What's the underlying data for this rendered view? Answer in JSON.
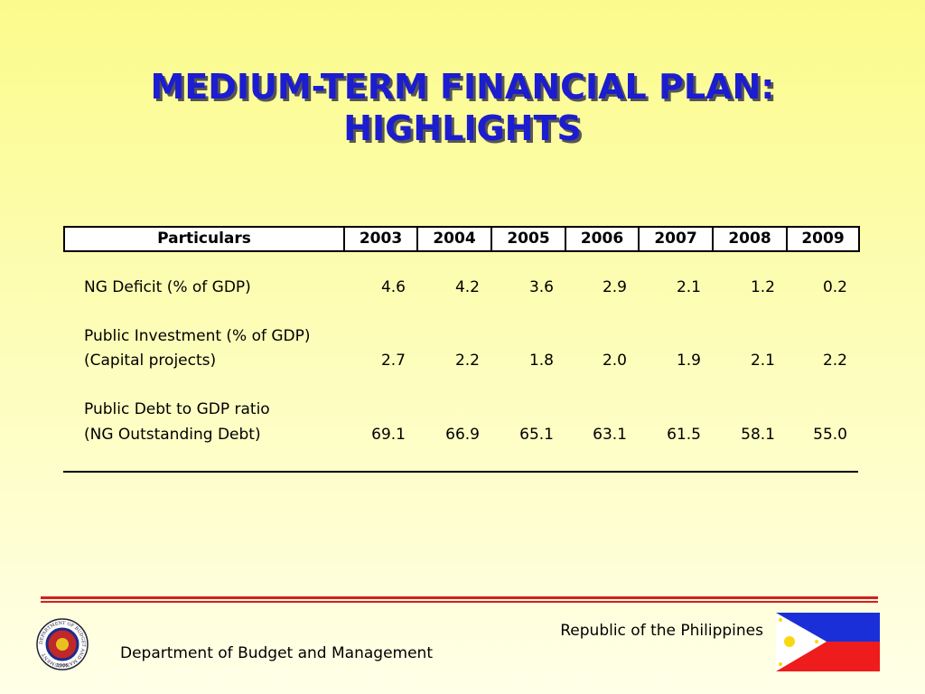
{
  "title": [
    "MEDIUM-TERM FINANCIAL PLAN:",
    "HIGHLIGHTS"
  ],
  "table": {
    "header": [
      "Particulars",
      "2003",
      "2004",
      "2005",
      "2006",
      "2007",
      "2008",
      "2009"
    ],
    "rows": [
      {
        "label": [
          "NG Deficit (% of GDP)"
        ],
        "values": [
          "4.6",
          "4.2",
          "3.6",
          "2.9",
          "2.1",
          "1.2",
          "0.2"
        ]
      },
      {
        "label": [
          "Public Investment (% of GDP)",
          "(Capital projects)"
        ],
        "values": [
          "2.7",
          "2.2",
          "1.8",
          "2.0",
          "1.9",
          "2.1",
          "2.2"
        ]
      },
      {
        "label": [
          "Public Debt to GDP ratio",
          "(NG Outstanding Debt)"
        ],
        "values": [
          "69.1",
          "66.9",
          "65.1",
          "63.1",
          "61.5",
          "58.1",
          "55.0"
        ]
      }
    ]
  },
  "footer": {
    "department": "Department of Budget and Management",
    "country": "Republic of the Philippines",
    "seal": {
      "text": "DEPARTMENT OF BUDGET AND MANAGEMENT",
      "year": "1936"
    }
  }
}
